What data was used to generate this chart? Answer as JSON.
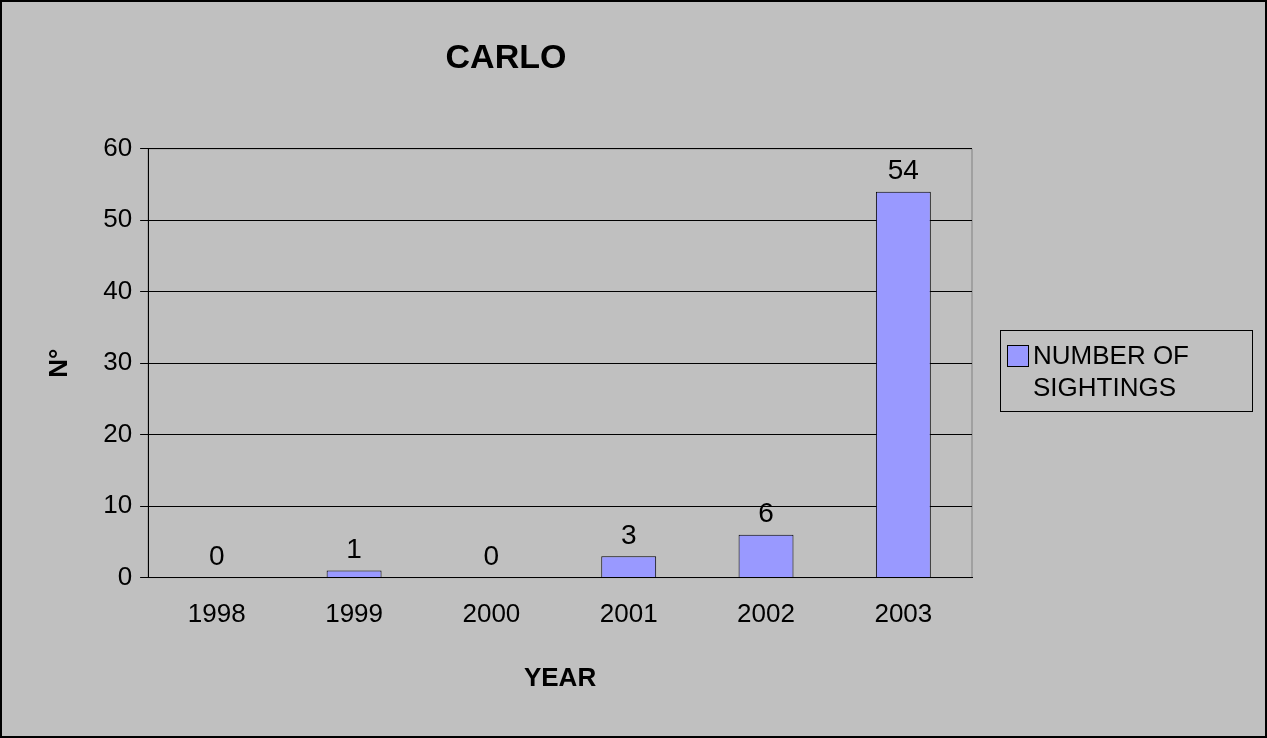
{
  "chart_data": {
    "type": "bar",
    "title": "CARLO",
    "xlabel": "YEAR",
    "ylabel": "N°",
    "categories": [
      "1998",
      "1999",
      "2000",
      "2001",
      "2002",
      "2003"
    ],
    "series": [
      {
        "name": "NUMBER OF SIGHTINGS",
        "color": "#9999ff",
        "values": [
          0,
          1,
          0,
          3,
          6,
          54
        ]
      }
    ],
    "ylim": [
      0,
      60
    ],
    "yticks": [
      0,
      10,
      20,
      30,
      40,
      50,
      60
    ],
    "grid": "y",
    "legend": "right",
    "data_labels": true
  }
}
